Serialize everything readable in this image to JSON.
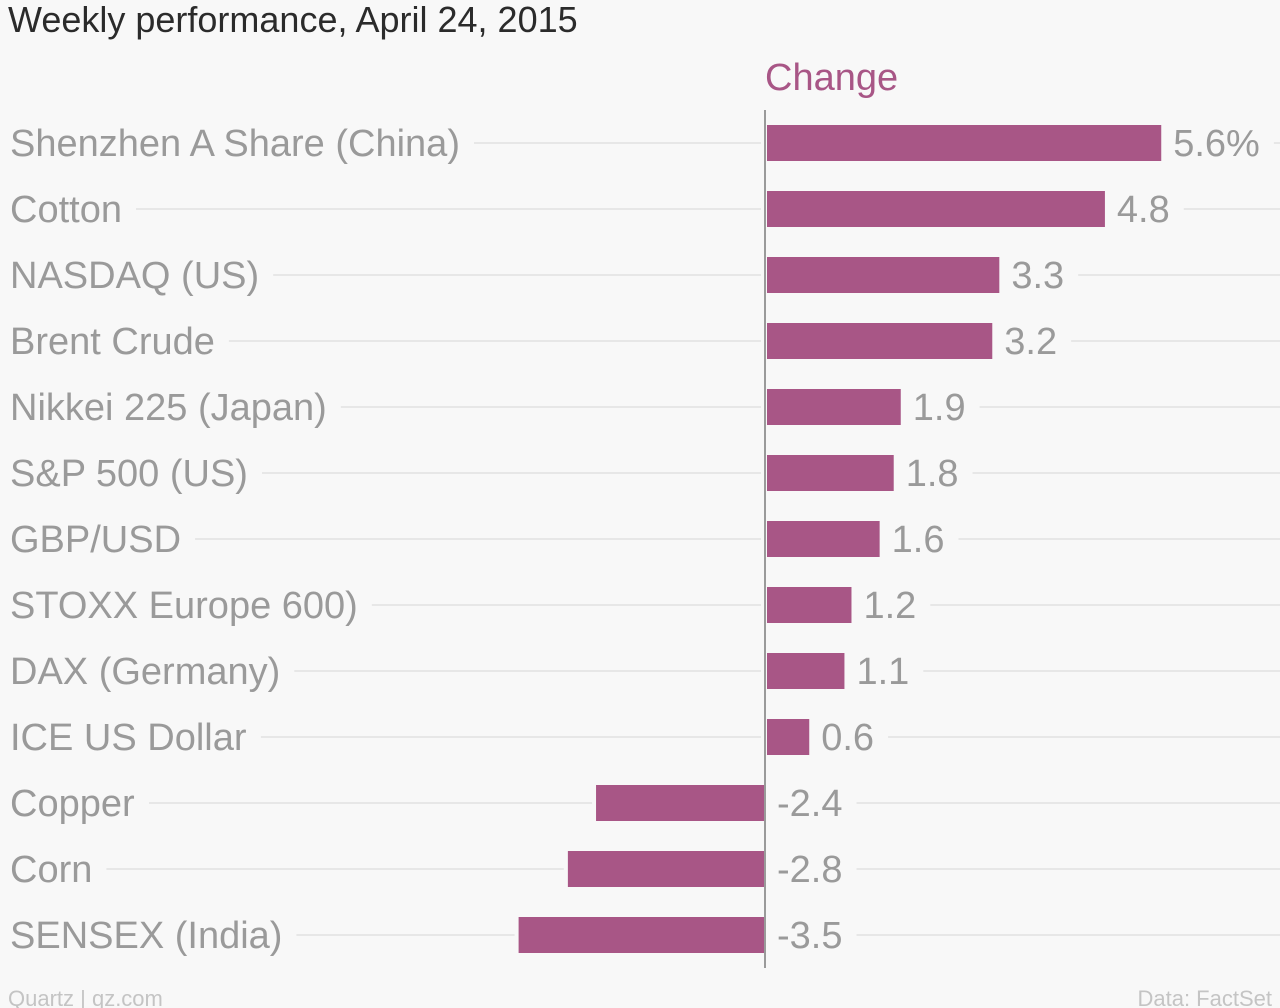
{
  "colors": {
    "background": "#f8f8f8",
    "bar": "#a85686",
    "header": "#a85686",
    "label": "#9a9a9a",
    "title": "#2b2b2b",
    "gridline": "#e7e7e7",
    "axis": "#9a9a9a",
    "footer": "#c4c4c4"
  },
  "footer": {
    "source_left": "Quartz | qz.com",
    "source_right": "Data: FactSet"
  },
  "chart_data": {
    "type": "bar",
    "orientation": "horizontal",
    "title": "Weekly performance, April 24, 2015",
    "series": [
      {
        "name": "Change",
        "values": [
          5.6,
          4.8,
          3.3,
          3.2,
          1.9,
          1.8,
          1.6,
          1.2,
          1.1,
          0.6,
          -2.4,
          -2.8,
          -3.5
        ],
        "value_labels": [
          "5.6%",
          "4.8",
          "3.3",
          "3.2",
          "1.9",
          "1.8",
          "1.6",
          "1.2",
          "1.1",
          "0.6",
          "-2.4",
          "-2.8",
          "-3.5"
        ]
      }
    ],
    "categories": [
      "Shenzhen A Share (China)",
      "Cotton",
      "NASDAQ (US)",
      "Brent Crude",
      "Nikkei 225 (Japan)",
      "S&P 500 (US)",
      "GBP/USD",
      "STOXX Europe 600)",
      "DAX (Germany)",
      "ICE US Dollar",
      "Copper",
      "Corn",
      "SENSEX (India)"
    ],
    "xlim": [
      -3.5,
      5.6
    ],
    "grid": true,
    "legend": "none"
  }
}
